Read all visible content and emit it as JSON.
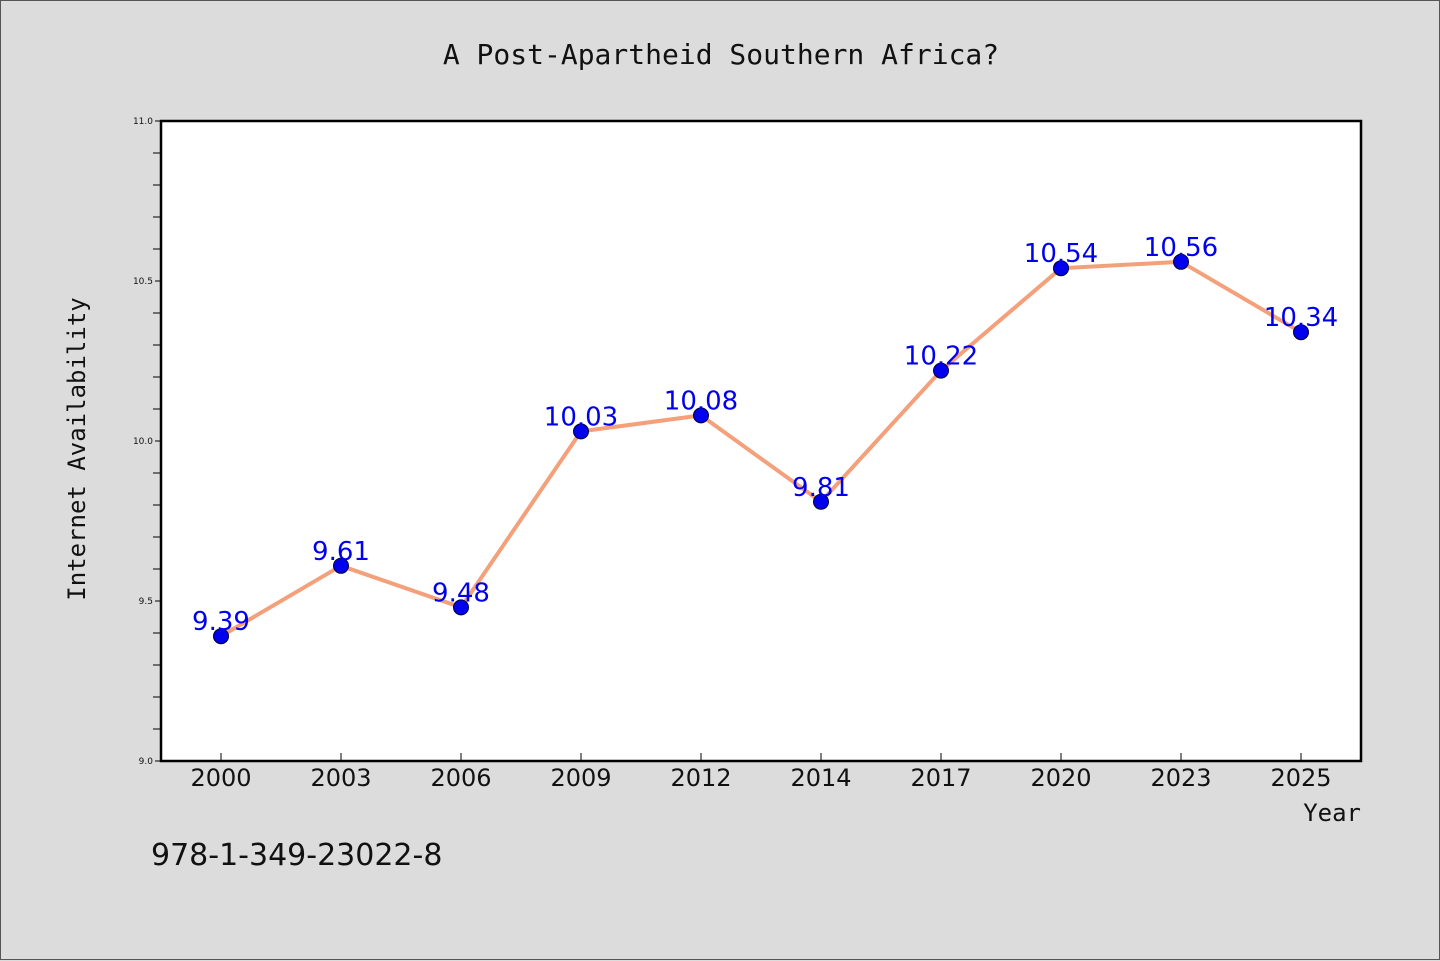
{
  "colors": {
    "background": "#dcdcdc",
    "plot_background": "#ffffff",
    "line": "#f4a07a",
    "marker": "#0000ee",
    "data_label": "#0000ee",
    "text": "#111111"
  },
  "footer": {
    "code": "978-1-349-23022-8"
  },
  "chart_data": {
    "type": "line",
    "title": "A Post-Apartheid Southern Africa?",
    "xlabel": "Year",
    "ylabel": "Internet Availability",
    "categories": [
      "2000",
      "2003",
      "2006",
      "2009",
      "2012",
      "2014",
      "2017",
      "2020",
      "2023",
      "2025"
    ],
    "series": [
      {
        "values": [
          9.39,
          9.61,
          9.48,
          10.03,
          10.08,
          9.81,
          10.22,
          10.54,
          10.56,
          10.34
        ],
        "data_labels": [
          "9.39",
          "9.61",
          "9.48",
          "10.03",
          "10.08",
          "9.81",
          "10.22",
          "10.54",
          "10.56",
          "10.34"
        ]
      }
    ],
    "ylim": [
      9.0,
      11.0
    ],
    "y_major_ticks": [
      "9.0",
      "9.5",
      "10.0",
      "10.5",
      "11.0"
    ],
    "y_minor_step": 0.1,
    "grid": false,
    "legend": "none"
  }
}
